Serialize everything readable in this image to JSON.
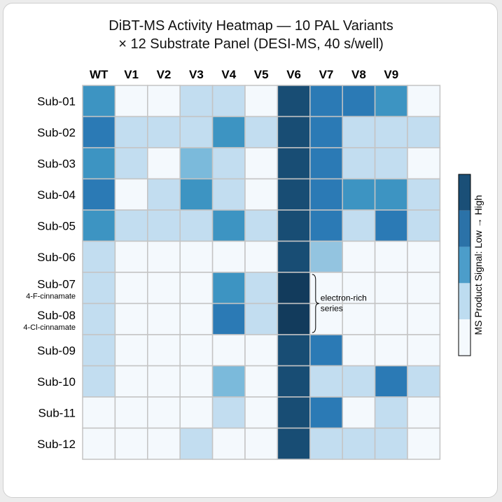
{
  "chart_data": {
    "type": "heatmap",
    "title": "DiBT-MS Activity Heatmap — 10 PAL Variants",
    "subtitle": "× 12 Substrate Panel (DESI-MS, 40 s/well)",
    "columns": [
      "WT",
      "V1",
      "V2",
      "V3",
      "V4",
      "V5",
      "V6",
      "V7",
      "V8",
      "V9",
      ""
    ],
    "rows": [
      "Sub-01",
      "Sub-02",
      "Sub-03",
      "Sub-04",
      "Sub-05",
      "Sub-06",
      "Sub-07",
      "Sub-08",
      "Sub-09",
      "Sub-10",
      "Sub-11",
      "Sub-12"
    ],
    "row_sublabels": [
      "",
      "",
      "",
      "",
      "",
      "",
      "4-F-cinnamate",
      "4-Cl-cinnamate",
      "",
      "",
      "",
      ""
    ],
    "levels": 5,
    "values": [
      [
        3,
        0,
        0,
        1,
        1,
        0,
        5,
        4,
        4,
        3,
        0
      ],
      [
        4,
        1,
        1,
        1,
        3,
        1,
        5,
        4,
        1,
        1,
        1
      ],
      [
        3,
        1,
        0,
        2,
        1,
        0,
        5,
        4,
        1,
        1,
        0
      ],
      [
        4,
        0,
        1,
        3,
        1,
        0,
        5,
        4,
        3,
        3,
        1
      ],
      [
        3,
        1,
        1,
        1,
        3,
        1,
        5,
        4,
        1,
        4,
        1
      ],
      [
        1,
        0,
        0,
        0,
        0,
        0,
        5,
        1.5,
        0,
        0,
        0
      ],
      [
        1,
        0,
        0,
        0,
        3,
        1,
        6,
        0,
        0,
        0,
        0
      ],
      [
        1,
        0,
        0,
        0,
        4,
        1,
        6,
        0,
        0,
        0,
        0
      ],
      [
        1,
        0,
        0,
        0,
        0,
        0,
        5,
        4,
        0,
        0,
        0
      ],
      [
        1,
        0,
        0,
        0,
        2,
        0,
        5,
        1,
        1,
        4,
        1
      ],
      [
        0,
        0,
        0,
        0,
        1,
        0,
        5,
        4,
        0,
        1,
        0
      ],
      [
        0,
        0,
        0,
        1,
        0,
        0,
        5,
        1,
        1,
        1,
        0
      ]
    ],
    "annotation": {
      "text": [
        "electron-rich",
        "series"
      ],
      "rows": [
        6,
        7
      ],
      "after_column": 6
    },
    "colorbar": {
      "label": "MS Product Signal: Low → High",
      "position": "right"
    },
    "colors": {
      "0": "#f4f9fd",
      "1": "#c2ddf0",
      "1.5": "#93c4e0",
      "2": "#7bbadb",
      "3": "#3d94c2",
      "4": "#2b7ab5",
      "5": "#184d74",
      "6": "#123b5c",
      "grid": "#c4c4c4"
    },
    "colorbar_colors": [
      "#1a4f77",
      "#2b72a8",
      "#4c9dca",
      "#bddcf0",
      "#f4f9fd"
    ]
  }
}
